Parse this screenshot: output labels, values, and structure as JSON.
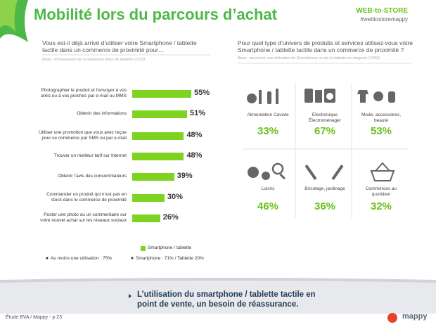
{
  "header": {
    "title": "Mobilité lors du parcours d’achat",
    "brand": "WEB-to-STORE",
    "hashtag": "#webtostoremappy"
  },
  "left": {
    "question": "Vous est-il déjà arrivé d’utiliser votre Smartphone / tablette tactile dans un commerce de proximité pour…",
    "base": "Base : Possesseurs de Smartphone et/ou de tablette (1325)",
    "notes": [
      "Au moins une utilisation : 75%",
      "Smartphone : 71% / Tablette 20%"
    ]
  },
  "chart_data": {
    "type": "bar",
    "orientation": "horizontal",
    "categories": [
      "Photographier le produit et l’envoyer à vos amis ou à vos proches par e-mail ou MMS",
      "Obtenir des informations",
      "Utiliser une promotion que vous avez reçue pour ce commerce par SMS ou par e-mail",
      "Trouver un meilleur tarif sur Internet",
      "Obtenir l’avis des consommateurs",
      "Commander un produit qui n’est pas en stock dans le commerce de proximité",
      "Poster une photo ou un commentaire sur votre nouvel achat sur les réseaux sociaux"
    ],
    "series": [
      {
        "name": "Smartphone / tablette",
        "color": "#7ed321",
        "values": [
          55,
          51,
          48,
          48,
          39,
          30,
          26
        ],
        "value_labels": [
          "55%",
          "51%",
          "48%",
          "48%",
          "39%",
          "30%",
          "26%"
        ]
      }
    ]
  },
  "right": {
    "question": "Pour quel type d’univers de produits et services utilisez-vous votre Smartphone / tablette tactile dans un commerce de proximité ?",
    "base": "Base : au moins une utilisation du Smartphone ou de la tablette en magasin (1003)",
    "items": [
      {
        "label": "Alimentation Caviste",
        "share": "33%"
      },
      {
        "label": "Électronique Électroménager",
        "share": "67%"
      },
      {
        "label": "Mode, accessoires, beauté",
        "share": "53%"
      },
      {
        "label": "Loisirs",
        "share": "46%"
      },
      {
        "label": "Bricolage, jardinage",
        "share": "36%"
      },
      {
        "label": "Commerces au quotidien",
        "share": "32%"
      }
    ]
  },
  "conclusion": "L’utilisation du smartphone / tablette tactile en point de vente, un besoin de réassurance.",
  "footer": {
    "source": "Étude BVA / Mappy - p 23",
    "logo": "mappy"
  }
}
